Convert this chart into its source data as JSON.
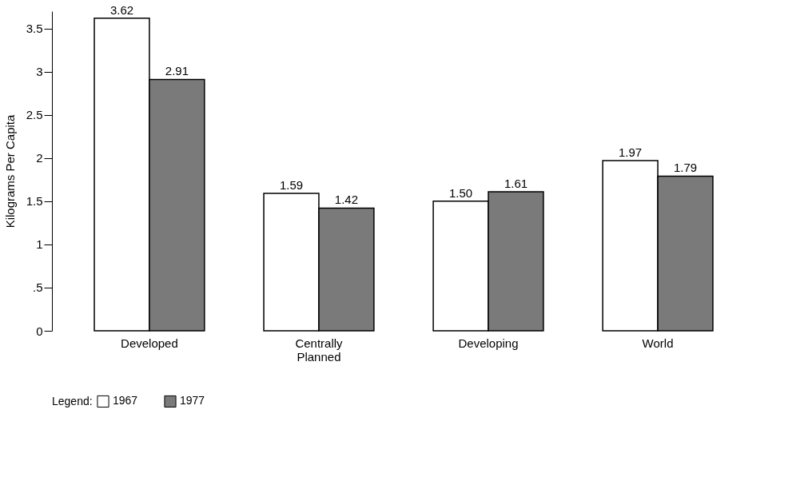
{
  "chart_data": {
    "type": "bar",
    "ylabel": "Kilograms Per Capita",
    "legend_title": "Legend:",
    "legend": "bottom",
    "grid": false,
    "categories": [
      "Developed",
      "Centrally Planned",
      "Developing",
      "World"
    ],
    "ylim": [
      0,
      3.7
    ],
    "yticks": [
      0,
      {
        "value": 0.5,
        "label": ".5"
      },
      1,
      1.5,
      2,
      2.5,
      3,
      3.5
    ],
    "series": [
      {
        "name": "1967",
        "color": "#ffffff",
        "values": [
          3.62,
          1.59,
          1.5,
          1.97
        ],
        "value_labels": [
          "3.62",
          "1.59",
          "1.50",
          "1.97"
        ]
      },
      {
        "name": "1977",
        "color": "#7a7a7a",
        "values": [
          2.91,
          1.42,
          1.61,
          1.79
        ],
        "value_labels": [
          "2.91",
          "1.42",
          "1.61",
          "1.79"
        ]
      }
    ]
  }
}
